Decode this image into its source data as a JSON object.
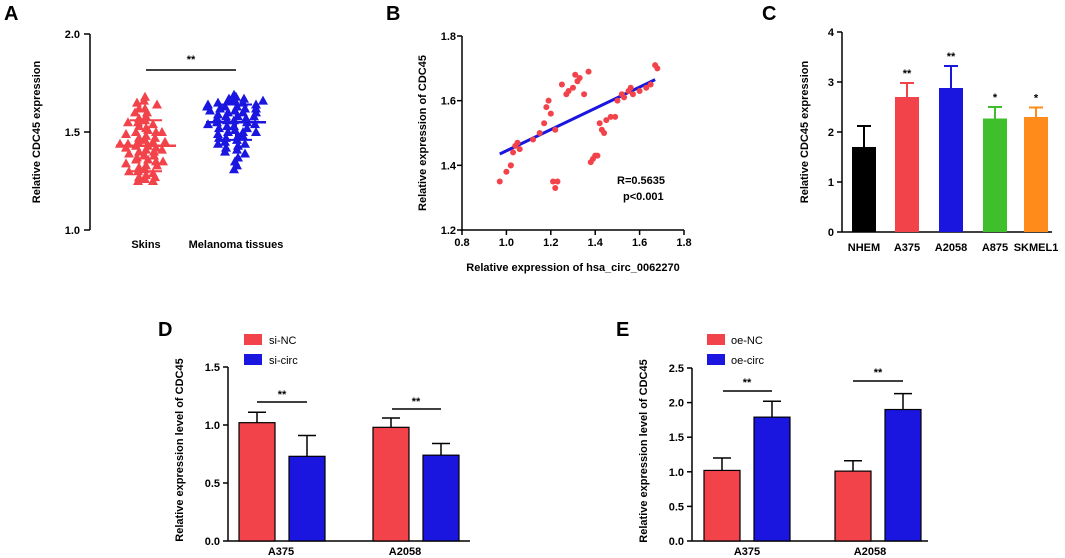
{
  "figure_labels": [
    "A",
    "B",
    "C",
    "D",
    "E"
  ],
  "colors": {
    "red": "#f2424a",
    "blue": "#1a16e0",
    "black": "#000000",
    "green": "#3fbf2c",
    "orange": "#ff8c1a",
    "axis": "#000000"
  },
  "chart_data": [
    {
      "id": "A",
      "type": "scatter",
      "subtype": "dot-plot",
      "title": "",
      "xlabel": "",
      "ylabel": "Relative  CDC45 expression",
      "ylim": [
        1.0,
        2.0
      ],
      "yticks": [
        "1.0",
        "1.5",
        "2.0"
      ],
      "categories": [
        "Skins",
        "Melanoma tissues"
      ],
      "groups": [
        {
          "name": "Skins",
          "marker": "triangle",
          "color": "#f2424a",
          "mean": 1.43,
          "sd": 0.13,
          "values": [
            1.66,
            1.65,
            1.64,
            1.62,
            1.6,
            1.6,
            1.58,
            1.57,
            1.56,
            1.55,
            1.54,
            1.52,
            1.51,
            1.5,
            1.5,
            1.49,
            1.48,
            1.47,
            1.46,
            1.45,
            1.45,
            1.44,
            1.43,
            1.43,
            1.42,
            1.42,
            1.41,
            1.4,
            1.4,
            1.39,
            1.38,
            1.37,
            1.36,
            1.36,
            1.35,
            1.34,
            1.33,
            1.32,
            1.31,
            1.3,
            1.29,
            1.28,
            1.27,
            1.26,
            1.25,
            1.25,
            1.27,
            1.33,
            1.38,
            1.45,
            1.5,
            1.55,
            1.62,
            1.68,
            1.3,
            1.41,
            1.47,
            1.53,
            1.35,
            1.44
          ]
        },
        {
          "name": "Melanoma tissues",
          "marker": "triangle",
          "color": "#1a16e0",
          "mean": 1.55,
          "sd": 0.09,
          "values": [
            1.69,
            1.68,
            1.67,
            1.66,
            1.66,
            1.65,
            1.65,
            1.64,
            1.64,
            1.63,
            1.63,
            1.62,
            1.62,
            1.61,
            1.6,
            1.6,
            1.59,
            1.58,
            1.58,
            1.57,
            1.56,
            1.56,
            1.55,
            1.55,
            1.54,
            1.53,
            1.53,
            1.52,
            1.51,
            1.5,
            1.5,
            1.49,
            1.48,
            1.47,
            1.46,
            1.45,
            1.44,
            1.43,
            1.42,
            1.41,
            1.4,
            1.39,
            1.37,
            1.35,
            1.33,
            1.31,
            1.66,
            1.62,
            1.57,
            1.52,
            1.48,
            1.44,
            1.6,
            1.54,
            1.47,
            1.63,
            1.58,
            1.5,
            1.67,
            1.61
          ]
        }
      ],
      "annotations": [
        {
          "text": "**",
          "between": [
            "Skins",
            "Melanoma tissues"
          ]
        }
      ]
    },
    {
      "id": "B",
      "type": "scatter",
      "title": "",
      "xlabel": "Relative expression of hsa_circ_0062270",
      "ylabel": "Relative expression of CDC45",
      "xlim": [
        0.8,
        1.8
      ],
      "ylim": [
        1.2,
        1.8
      ],
      "xticks": [
        "0.8",
        "1.0",
        "1.2",
        "1.4",
        "1.6",
        "1.8"
      ],
      "yticks": [
        "1.2",
        "1.4",
        "1.6",
        "1.8"
      ],
      "points": [
        [
          0.97,
          1.35
        ],
        [
          1.0,
          1.38
        ],
        [
          1.02,
          1.4
        ],
        [
          1.03,
          1.44
        ],
        [
          1.04,
          1.46
        ],
        [
          1.05,
          1.47
        ],
        [
          1.06,
          1.45
        ],
        [
          1.02,
          1.4
        ],
        [
          1.12,
          1.48
        ],
        [
          1.15,
          1.5
        ],
        [
          1.17,
          1.53
        ],
        [
          1.18,
          1.58
        ],
        [
          1.19,
          1.6
        ],
        [
          1.2,
          1.56
        ],
        [
          1.21,
          1.35
        ],
        [
          1.22,
          1.33
        ],
        [
          1.23,
          1.35
        ],
        [
          1.25,
          1.65
        ],
        [
          1.27,
          1.62
        ],
        [
          1.28,
          1.63
        ],
        [
          1.3,
          1.64
        ],
        [
          1.31,
          1.68
        ],
        [
          1.32,
          1.66
        ],
        [
          1.33,
          1.67
        ],
        [
          1.35,
          1.62
        ],
        [
          1.37,
          1.69
        ],
        [
          1.38,
          1.41
        ],
        [
          1.39,
          1.42
        ],
        [
          1.4,
          1.43
        ],
        [
          1.41,
          1.43
        ],
        [
          1.42,
          1.53
        ],
        [
          1.43,
          1.51
        ],
        [
          1.44,
          1.5
        ],
        [
          1.45,
          1.54
        ],
        [
          1.47,
          1.55
        ],
        [
          1.49,
          1.55
        ],
        [
          1.5,
          1.6
        ],
        [
          1.52,
          1.62
        ],
        [
          1.53,
          1.61
        ],
        [
          1.55,
          1.63
        ],
        [
          1.57,
          1.62
        ],
        [
          1.56,
          1.64
        ],
        [
          1.6,
          1.63
        ],
        [
          1.63,
          1.64
        ],
        [
          1.65,
          1.65
        ],
        [
          1.67,
          1.71
        ],
        [
          1.68,
          1.7
        ],
        [
          1.22,
          1.51
        ]
      ],
      "point_color": "#f2424a",
      "fit_line": {
        "x": [
          0.97,
          1.67
        ],
        "y": [
          1.435,
          1.665
        ],
        "color": "#1a16e0"
      },
      "annotations": [
        "R=0.5635",
        "p<0.001"
      ]
    },
    {
      "id": "C",
      "type": "bar",
      "title": "",
      "xlabel": "",
      "ylabel": "Relative CDC45 expression",
      "ylim": [
        0,
        4
      ],
      "yticks": [
        "0",
        "1",
        "2",
        "3",
        "4"
      ],
      "categories": [
        "NHEM",
        "A375",
        "A2058",
        "A875",
        "SKMEL1"
      ],
      "values": [
        1.7,
        2.7,
        2.88,
        2.27,
        2.3
      ],
      "errors": [
        0.42,
        0.28,
        0.44,
        0.23,
        0.19
      ],
      "colors": [
        "#000000",
        "#f2424a",
        "#1a16e0",
        "#3fbf2c",
        "#ff8c1a"
      ],
      "significance": [
        "",
        "**",
        "**",
        "*",
        "*"
      ]
    },
    {
      "id": "D",
      "type": "bar",
      "title": "",
      "xlabel": "",
      "ylabel": "Relative expression level of CDC45",
      "ylim": [
        0,
        1.5
      ],
      "yticks": [
        "0.0",
        "0.5",
        "1.0",
        "1.5"
      ],
      "categories": [
        "A375",
        "A2058"
      ],
      "series": [
        {
          "name": "si-NC",
          "values": [
            1.02,
            0.98
          ],
          "errors": [
            0.09,
            0.08
          ],
          "color": "#f2424a"
        },
        {
          "name": "si-circ",
          "values": [
            0.73,
            0.74
          ],
          "errors": [
            0.18,
            0.1
          ],
          "color": "#1a16e0"
        }
      ],
      "legend_position": "top-left",
      "significance": [
        "**",
        "**"
      ]
    },
    {
      "id": "E",
      "type": "bar",
      "title": "",
      "xlabel": "",
      "ylabel": "Relative expression level of CDC45",
      "ylim": [
        0,
        2.5
      ],
      "yticks": [
        "0.0",
        "0.5",
        "1.0",
        "1.5",
        "2.0",
        "2.5"
      ],
      "categories": [
        "A375",
        "A2058"
      ],
      "series": [
        {
          "name": "oe-NC",
          "values": [
            1.02,
            1.01
          ],
          "errors": [
            0.18,
            0.15
          ],
          "color": "#f2424a"
        },
        {
          "name": "oe-circ",
          "values": [
            1.79,
            1.9
          ],
          "errors": [
            0.23,
            0.23
          ],
          "color": "#1a16e0"
        }
      ],
      "legend_position": "top-left",
      "significance": [
        "**",
        "**"
      ]
    }
  ]
}
